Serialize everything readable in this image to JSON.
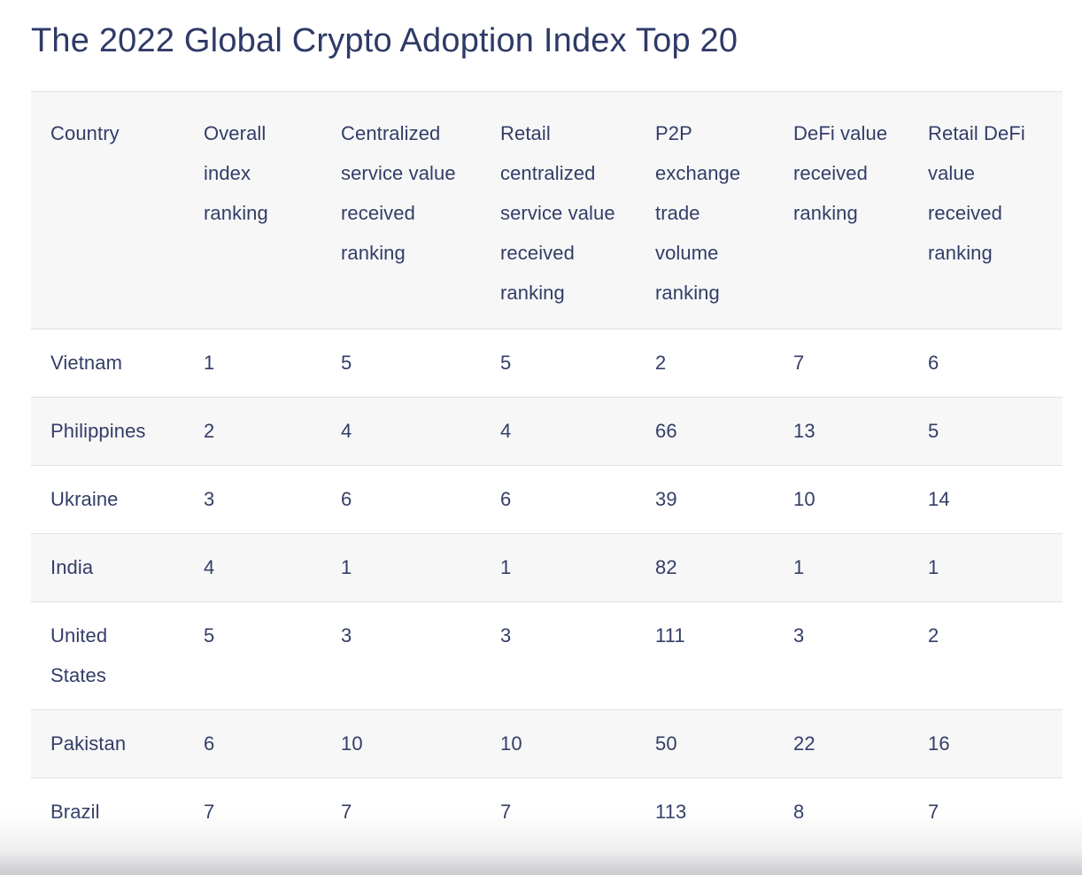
{
  "page": {
    "title": "The 2022 Global Crypto Adoption Index Top 20"
  },
  "colors": {
    "text_navy": "#2e3a67",
    "row_stripe": "#f7f7f8",
    "row_border": "#e2e2e4",
    "background": "#ffffff"
  },
  "chart_data": {
    "type": "table",
    "title": "The 2022 Global Crypto Adoption Index Top 20",
    "columns": [
      "Country",
      "Overall index ranking",
      "Centralized service value received ranking",
      "Retail centralized service value received ranking",
      "P2P exchange trade volume ranking",
      "DeFi value received ranking",
      "Retail DeFi value received ranking"
    ],
    "rows": [
      [
        "Vietnam",
        1,
        5,
        5,
        2,
        7,
        6
      ],
      [
        "Philippines",
        2,
        4,
        4,
        66,
        13,
        5
      ],
      [
        "Ukraine",
        3,
        6,
        6,
        39,
        10,
        14
      ],
      [
        "India",
        4,
        1,
        1,
        82,
        1,
        1
      ],
      [
        "United States",
        5,
        3,
        3,
        111,
        3,
        2
      ],
      [
        "Pakistan",
        6,
        10,
        10,
        50,
        22,
        16
      ],
      [
        "Brazil",
        7,
        7,
        7,
        113,
        8,
        7
      ]
    ],
    "notes": {
      "visible_rows": "Top 7 of 20 visible; Brazil row cut off at bottom edge by fade"
    }
  }
}
